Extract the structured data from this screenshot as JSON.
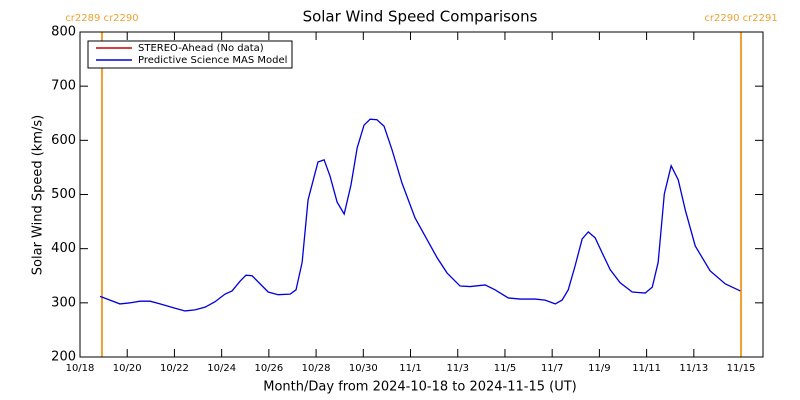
{
  "chart_data": {
    "type": "line",
    "title": "Solar Wind Speed Comparisons",
    "xlabel": "Month/Day from 2024-10-18 to 2024-11-15 (UT)",
    "ylabel": "Solar Wind Speed (km/s)",
    "x": [
      0.85,
      1.27,
      1.69,
      2.12,
      2.54,
      2.97,
      3.39,
      4.03,
      4.45,
      4.87,
      5.3,
      5.72,
      6.14,
      6.44,
      6.78,
      7.03,
      7.29,
      7.63,
      7.97,
      8.39,
      8.9,
      9.15,
      9.41,
      9.66,
      10.08,
      10.34,
      10.59,
      10.89,
      11.19,
      11.48,
      11.74,
      12.03,
      12.29,
      12.58,
      12.88,
      13.22,
      13.64,
      14.19,
      14.62,
      15.13,
      15.55,
      16.1,
      16.53,
      17.16,
      17.58,
      18.14,
      18.64,
      19.28,
      19.7,
      20.13,
      20.42,
      20.68,
      20.97,
      21.27,
      21.53,
      21.82,
      22.12,
      22.46,
      22.88,
      23.39,
      23.94,
      24.24,
      24.49,
      24.75,
      25.04,
      25.34,
      25.64,
      26.06,
      26.69,
      27.33,
      27.97
    ],
    "series": [
      {
        "name": "STEREO-Ahead (No data)",
        "color": "#cc0000",
        "values": [
          null,
          null,
          null,
          null,
          null,
          null,
          null,
          null,
          null,
          null,
          null,
          null,
          null,
          null,
          null,
          null,
          null,
          null,
          null,
          null,
          null,
          null,
          null,
          null,
          null,
          null,
          null,
          null,
          null,
          null,
          null,
          null,
          null,
          null,
          null,
          null,
          null,
          null,
          null,
          null,
          null,
          null,
          null,
          null,
          null,
          null,
          null,
          null,
          null,
          null,
          null,
          null,
          null,
          null,
          null,
          null,
          null,
          null,
          null,
          null,
          null,
          null,
          null,
          null,
          null,
          null,
          null,
          null,
          null,
          null,
          null
        ]
      },
      {
        "name": "Predictive Science MAS Model",
        "color": "#0000dd",
        "values": [
          312,
          305,
          298,
          300,
          303,
          303,
          298,
          290,
          285,
          287,
          292,
          302,
          316,
          322,
          340,
          351,
          350,
          335,
          320,
          315,
          316,
          324,
          375,
          490,
          560,
          564,
          534,
          486,
          464,
          518,
          586,
          628,
          639,
          638,
          626,
          582,
          521,
          457,
          423,
          383,
          355,
          331,
          330,
          333,
          324,
          309,
          307,
          307,
          305,
          298,
          305,
          324,
          368,
          418,
          431,
          420,
          392,
          361,
          337,
          320,
          318,
          329,
          375,
          501,
          553,
          527,
          471,
          405,
          359,
          335,
          322
        ]
      }
    ],
    "markers": [
      {
        "x": 0.93,
        "label": "cr2289 cr2290",
        "color": "#f0a030"
      },
      {
        "x": 28,
        "label": "cr2290 cr2291",
        "color": "#f0a030"
      }
    ],
    "xlim": [
      0,
      28.93
    ],
    "ylim": [
      200,
      800
    ],
    "xticks": [
      {
        "value": 0,
        "label": "10/18"
      },
      {
        "value": 2,
        "label": "10/20"
      },
      {
        "value": 4,
        "label": "10/22"
      },
      {
        "value": 6,
        "label": "10/24"
      },
      {
        "value": 8,
        "label": "10/26"
      },
      {
        "value": 10,
        "label": "10/28"
      },
      {
        "value": 12,
        "label": "10/30"
      },
      {
        "value": 14,
        "label": "11/1"
      },
      {
        "value": 16,
        "label": "11/3"
      },
      {
        "value": 18,
        "label": "11/5"
      },
      {
        "value": 20,
        "label": "11/7"
      },
      {
        "value": 22,
        "label": "11/9"
      },
      {
        "value": 24,
        "label": "11/11"
      },
      {
        "value": 26,
        "label": "11/13"
      },
      {
        "value": 28,
        "label": "11/15"
      }
    ],
    "yticks": [
      200,
      300,
      400,
      500,
      600,
      700,
      800
    ],
    "legend": "upper left"
  }
}
